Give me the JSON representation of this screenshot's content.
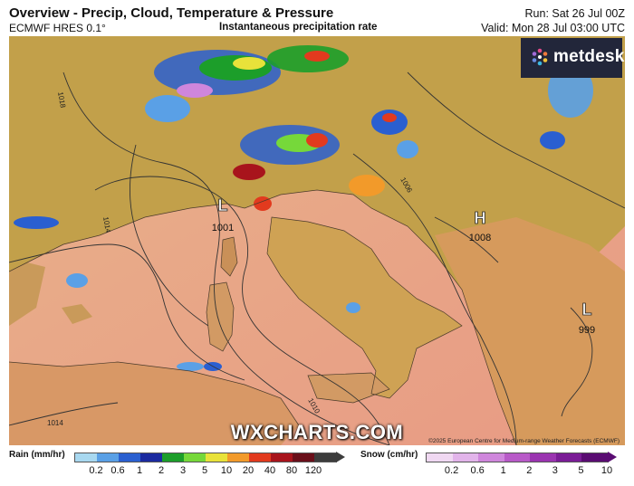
{
  "header": {
    "title": "Overview - Precip, Cloud, Temperature & Pressure",
    "model": "ECMWF HRES 0.1°",
    "subtitle": "Instantaneous precipitation rate",
    "run": "Run: Sat 26 Jul 00Z",
    "valid": "Valid: Mon 28 Jul 03:00 UTC"
  },
  "brand": {
    "logo_text": "metdesk",
    "watermark": "WXCHARTS.COM",
    "copyright": "©2025 European Centre for Medium-range Weather Forecasts (ECMWF)"
  },
  "map": {
    "pressure_centres": [
      {
        "type": "L",
        "value": "1001"
      },
      {
        "type": "H",
        "value": "1008"
      },
      {
        "type": "L",
        "value": "999"
      }
    ],
    "isobar_labels": [
      "1018",
      "1014",
      "1014",
      "1010",
      "1006"
    ]
  },
  "legend": {
    "rain": {
      "title": "Rain (mm/hr)",
      "ticks": [
        "0.2",
        "0.6",
        "1",
        "2",
        "3",
        "5",
        "10",
        "20",
        "40",
        "80",
        "120"
      ],
      "colors": [
        "#a8d8f0",
        "#5aa0e6",
        "#2a5fd0",
        "#1b2aa0",
        "#1c9e2a",
        "#76d83a",
        "#e8e23a",
        "#f29a2a",
        "#e23a1e",
        "#a8141c",
        "#6a0f1a",
        "#3c3c3c"
      ]
    },
    "snow": {
      "title": "Snow (cm/hr)",
      "ticks": [
        "0.2",
        "0.6",
        "1",
        "2",
        "3",
        "5",
        "10"
      ],
      "colors": [
        "#f0d8f2",
        "#e2b4ea",
        "#cf86dc",
        "#b85ac8",
        "#9a34b0",
        "#7a1c96",
        "#5a0c72"
      ]
    }
  }
}
